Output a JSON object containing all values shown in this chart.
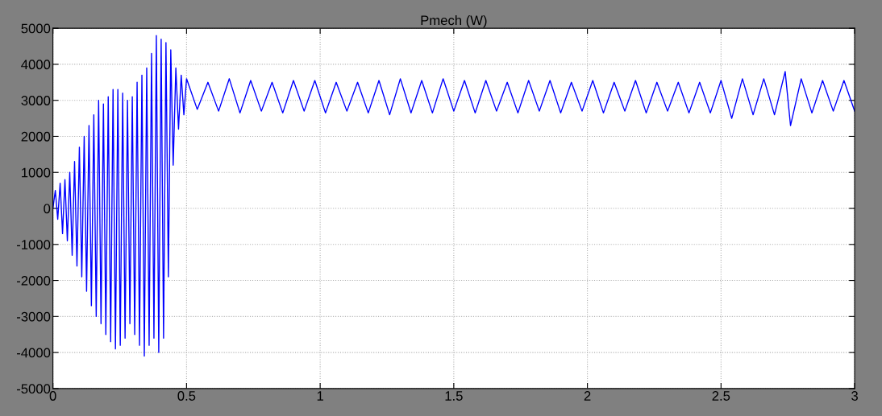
{
  "chart_data": {
    "type": "line",
    "title": "Pmech (W)",
    "xlim": [
      0,
      3
    ],
    "xticks": [
      0,
      0.5,
      1,
      1.5,
      2,
      2.5,
      3
    ],
    "ylim": [
      -5000,
      5000
    ],
    "yticks": [
      -5000,
      -4000,
      -3000,
      -2000,
      -1000,
      0,
      1000,
      2000,
      3000,
      4000,
      5000
    ],
    "grid": true,
    "marker": "none",
    "line_style": "solid",
    "series": [
      {
        "color": "#0000ff",
        "x": [
          0,
          0.009,
          0.018,
          0.027,
          0.036,
          0.045,
          0.054,
          0.063,
          0.072,
          0.081,
          0.09,
          0.099,
          0.108,
          0.117,
          0.126,
          0.135,
          0.144,
          0.153,
          0.162,
          0.171,
          0.18,
          0.189,
          0.198,
          0.207,
          0.216,
          0.225,
          0.234,
          0.243,
          0.252,
          0.261,
          0.27,
          0.279,
          0.288,
          0.297,
          0.306,
          0.315,
          0.324,
          0.333,
          0.342,
          0.351,
          0.36,
          0.369,
          0.378,
          0.387,
          0.396,
          0.405,
          0.414,
          0.423,
          0.432,
          0.441,
          0.45,
          0.46,
          0.47,
          0.48,
          0.49,
          0.5,
          0.54,
          0.58,
          0.62,
          0.66,
          0.7,
          0.74,
          0.78,
          0.82,
          0.86,
          0.9,
          0.94,
          0.98,
          1.02,
          1.06,
          1.1,
          1.14,
          1.18,
          1.22,
          1.26,
          1.3,
          1.34,
          1.38,
          1.42,
          1.46,
          1.5,
          1.54,
          1.58,
          1.62,
          1.66,
          1.7,
          1.74,
          1.78,
          1.82,
          1.86,
          1.9,
          1.94,
          1.98,
          2.02,
          2.06,
          2.1,
          2.14,
          2.18,
          2.22,
          2.26,
          2.3,
          2.34,
          2.38,
          2.42,
          2.46,
          2.5,
          2.54,
          2.58,
          2.62,
          2.66,
          2.7,
          2.74,
          2.76,
          2.8,
          2.84,
          2.88,
          2.92,
          2.96,
          3.0
        ],
        "values": [
          0,
          500,
          -300,
          700,
          -700,
          800,
          -900,
          1000,
          -1300,
          1300,
          -1600,
          1700,
          -1900,
          2000,
          -2300,
          2300,
          -2700,
          2600,
          -3000,
          3000,
          -3200,
          2900,
          -3500,
          3100,
          -3700,
          3300,
          -3900,
          3300,
          -3800,
          3200,
          -3600,
          3000,
          -3200,
          3100,
          -3500,
          3500,
          -3800,
          3700,
          -4100,
          3900,
          -3800,
          4300,
          -3600,
          4800,
          -4000,
          4700,
          -3600,
          4600,
          -1900,
          4400,
          1200,
          3900,
          2200,
          3700,
          2600,
          3600,
          2750,
          3500,
          2700,
          3600,
          2650,
          3550,
          2700,
          3500,
          2650,
          3550,
          2700,
          3550,
          2650,
          3500,
          2700,
          3500,
          2650,
          3550,
          2600,
          3600,
          2650,
          3550,
          2650,
          3600,
          2700,
          3550,
          2650,
          3550,
          2700,
          3500,
          2650,
          3550,
          2700,
          3550,
          2650,
          3500,
          2700,
          3550,
          2650,
          3500,
          2700,
          3550,
          2650,
          3500,
          2700,
          3500,
          2650,
          3500,
          2650,
          3550,
          2500,
          3600,
          2600,
          3600,
          2600,
          3800,
          2300,
          3600,
          2650,
          3550,
          2700,
          3550,
          2700
        ]
      }
    ]
  }
}
